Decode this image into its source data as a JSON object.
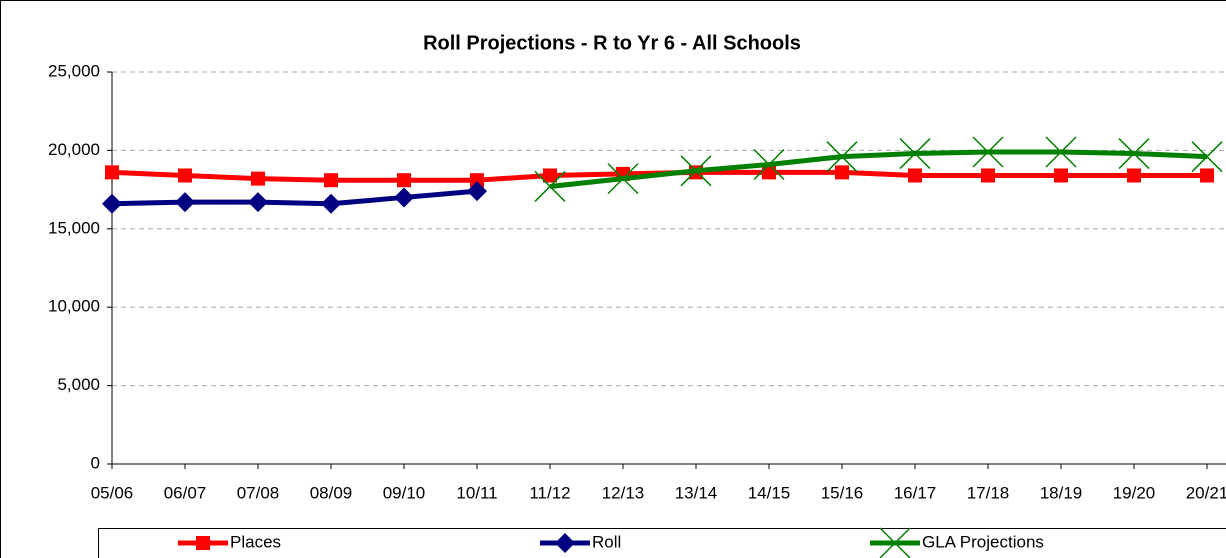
{
  "chart_data": {
    "type": "line",
    "title": "Roll Projections - R to Yr 6 - All Schools",
    "categories": [
      "05/06",
      "06/07",
      "07/08",
      "08/09",
      "09/10",
      "10/11",
      "11/12",
      "12/13",
      "13/14",
      "14/15",
      "15/16",
      "16/17",
      "17/18",
      "18/19",
      "19/20",
      "20/21"
    ],
    "series": [
      {
        "name": "Places",
        "color": "#ff0000",
        "marker": "square",
        "values": [
          18600,
          18400,
          18200,
          18100,
          18100,
          18100,
          18400,
          18500,
          18600,
          18600,
          18600,
          18400,
          18400,
          18400,
          18400,
          18400
        ]
      },
      {
        "name": "Roll",
        "color": "#000080",
        "marker": "diamond",
        "values": [
          16600,
          16700,
          16700,
          16600,
          17000,
          17400,
          null,
          null,
          null,
          null,
          null,
          null,
          null,
          null,
          null,
          null
        ]
      },
      {
        "name": "GLA Projections",
        "color": "#008000",
        "marker": "x",
        "values": [
          null,
          null,
          null,
          null,
          null,
          null,
          17700,
          18200,
          18700,
          19100,
          19600,
          19800,
          19900,
          19900,
          19800,
          19600
        ]
      }
    ],
    "ylim": [
      0,
      25000
    ],
    "yticks": [
      0,
      {
        "value": 5000,
        "label": "5,000"
      },
      {
        "value": 10000,
        "label": "10,000"
      },
      {
        "value": 15000,
        "label": "15,000"
      },
      {
        "value": 20000,
        "label": "20,000"
      },
      {
        "value": 25000,
        "label": "25,000"
      }
    ],
    "grid": true,
    "legend": "bottom"
  }
}
